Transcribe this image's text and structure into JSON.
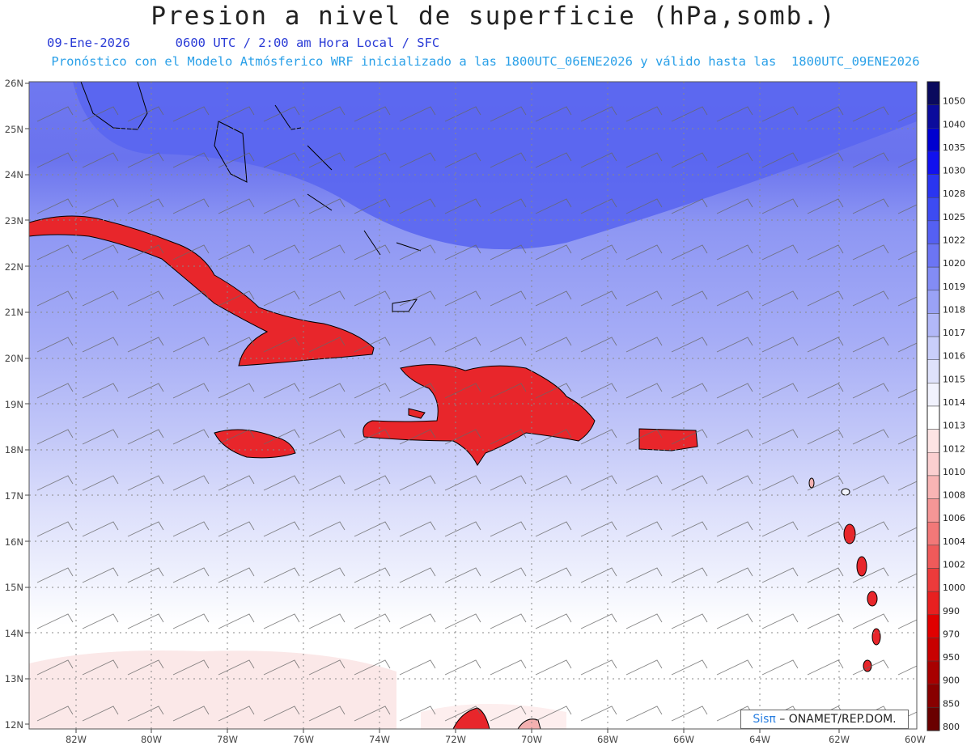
{
  "header": {
    "title": "Presion a nivel de superficie (hPa,somb.)",
    "date": "09-Ene-2026",
    "time_label": "0600 UTC / 2:00 am Hora Local / SFC",
    "model_info": "Pronóstico con el Modelo Atmósferico WRF inicializado a las 1800UTC_06ENE2026 y válido hasta las  1800UTC_09ENE2026"
  },
  "map": {
    "lat_labels": [
      "26N",
      "25N",
      "24N",
      "23N",
      "22N",
      "21N",
      "20N",
      "19N",
      "18N",
      "17N",
      "16N",
      "15N",
      "14N",
      "13N",
      "12N"
    ],
    "lon_labels": [
      "82W",
      "80W",
      "78W",
      "76W",
      "74W",
      "72W",
      "70W",
      "68W",
      "66W",
      "64W",
      "62W",
      "60W"
    ],
    "colors": {
      "high": "#5a66f0",
      "mid": "#9aa3f5",
      "low": "#dfe3fb",
      "neutral": "#ffffff",
      "land_pressure": "#e8262b"
    }
  },
  "legend": {
    "values": [
      "1050",
      "1040",
      "1035",
      "1030",
      "1028",
      "1025",
      "1022",
      "1020",
      "1019",
      "1018",
      "1017",
      "1016",
      "1015",
      "1014",
      "1013",
      "1012",
      "1010",
      "1008",
      "1006",
      "1004",
      "1002",
      "1000",
      "990",
      "970",
      "950",
      "900",
      "850",
      "800"
    ],
    "colors": [
      "#0a0a5e",
      "#0b0b9c",
      "#0000d0",
      "#1111ee",
      "#2a35f0",
      "#3d4bf2",
      "#5560f3",
      "#6c75f4",
      "#838cf5",
      "#9aa2f6",
      "#b2b8f8",
      "#c9cefa",
      "#dfe2fb",
      "#f1f2fd",
      "#ffffff",
      "#fde4e4",
      "#fbcfd0",
      "#f8b4b4",
      "#f59696",
      "#f27878",
      "#ef5a5a",
      "#ec3b3b",
      "#e82020",
      "#e00000",
      "#c80000",
      "#a80000",
      "#880000",
      "#6a0000"
    ]
  },
  "credit": {
    "logo": "Sisπ",
    "text": " – ONAMET/REP.DOM."
  }
}
